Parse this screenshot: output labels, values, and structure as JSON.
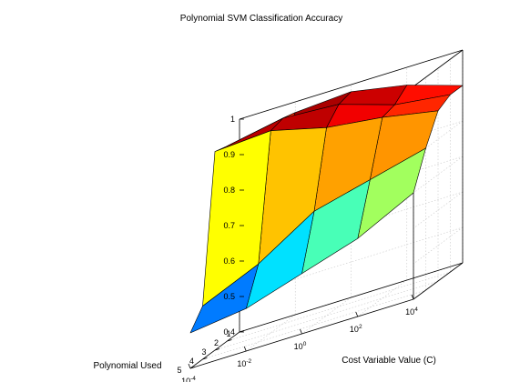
{
  "chart_data": {
    "type": "surface",
    "title": "Polynomial SVM Classification Accuracy",
    "xlabel": "Polynomial Used",
    "ylabel": "Cost Variable Value (C)",
    "zlabel": "",
    "x": [
      1,
      2,
      3,
      4,
      5
    ],
    "y_exponents": [
      -4,
      -2,
      0,
      2,
      4
    ],
    "x_ticks": [
      "1",
      "2",
      "3",
      "4",
      "5"
    ],
    "y_ticks": [
      {
        "base": "10",
        "exp": "-4"
      },
      {
        "base": "10",
        "exp": "-2"
      },
      {
        "base": "10",
        "exp": "0"
      },
      {
        "base": "10",
        "exp": "2"
      },
      {
        "base": "10",
        "exp": "4"
      }
    ],
    "z_ticks": [
      "0.4",
      "0.5",
      "0.6",
      "0.7",
      "0.8",
      "0.9",
      "1"
    ],
    "zlim": [
      0.4,
      1.0
    ],
    "y_scale": "log",
    "grid": true,
    "colormap": "jet",
    "z": [
      [
        0.7,
        0.97,
        0.98,
        0.95,
        0.9
      ],
      [
        0.95,
        0.98,
        0.97,
        0.92,
        0.9
      ],
      [
        0.96,
        0.97,
        0.93,
        0.91,
        0.88
      ],
      [
        0.55,
        0.62,
        0.72,
        0.76,
        0.8
      ],
      [
        0.5,
        0.52,
        0.57,
        0.62,
        0.7
      ]
    ]
  }
}
